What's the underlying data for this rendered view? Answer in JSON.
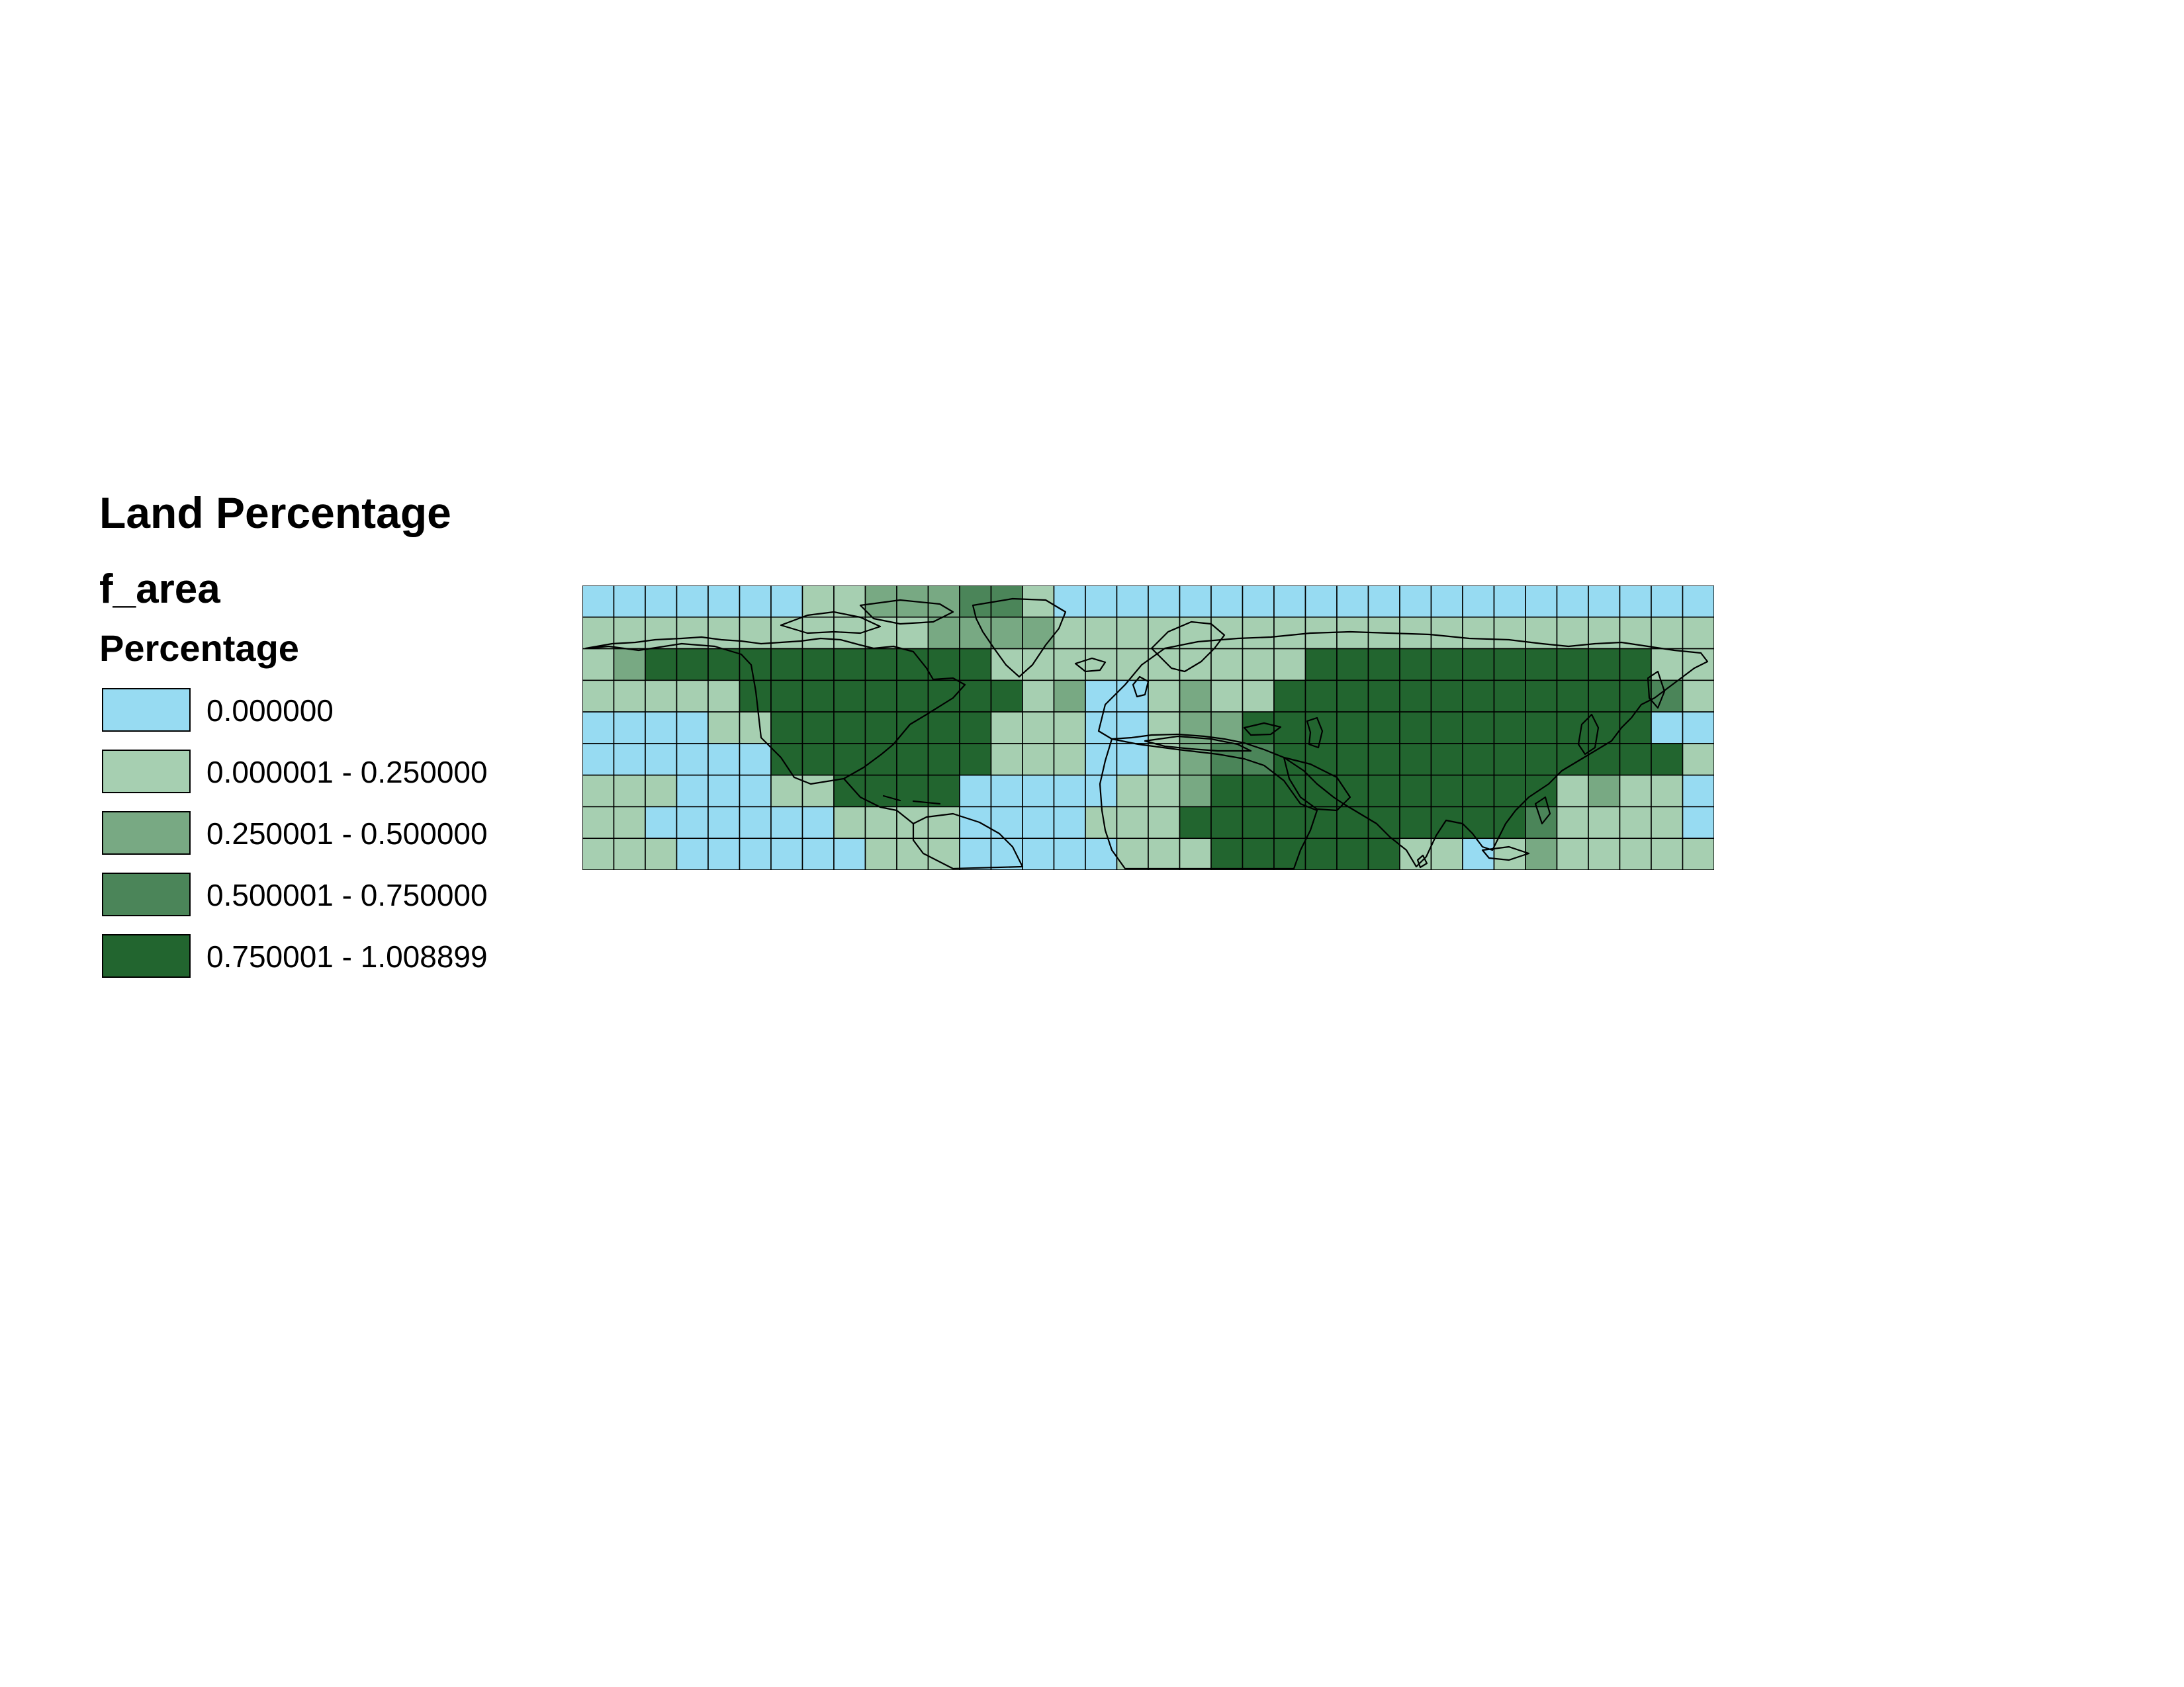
{
  "legend": {
    "title": "Land Percentage",
    "layer": "f_area",
    "field": "Percentage",
    "classes": [
      {
        "label": "0.000000",
        "color": "#97dbf2"
      },
      {
        "label": "0.000001 - 0.250000",
        "color": "#a6cfb1"
      },
      {
        "label": "0.250001 - 0.500000",
        "color": "#78a983"
      },
      {
        "label": "0.500001 - 0.750000",
        "color": "#4b8559"
      },
      {
        "label": "0.750001 - 1.008899",
        "color": "#22652f"
      }
    ]
  },
  "map": {
    "cols": 36,
    "rows": 9,
    "grid": [
      "000000011222331000000000000000000000",
      "111111111112222111111111111111111111",
      "124444444444411111111114444444444411",
      "111114444444441200121144444444444431",
      "000011444444411100122444444444444400",
      "000000444444411100123344444444444441",
      "111000114444000001124444444444412110",
      "110000001111000011144444444444311110",
      "111000000111000001114444441101211111"
    ]
  }
}
